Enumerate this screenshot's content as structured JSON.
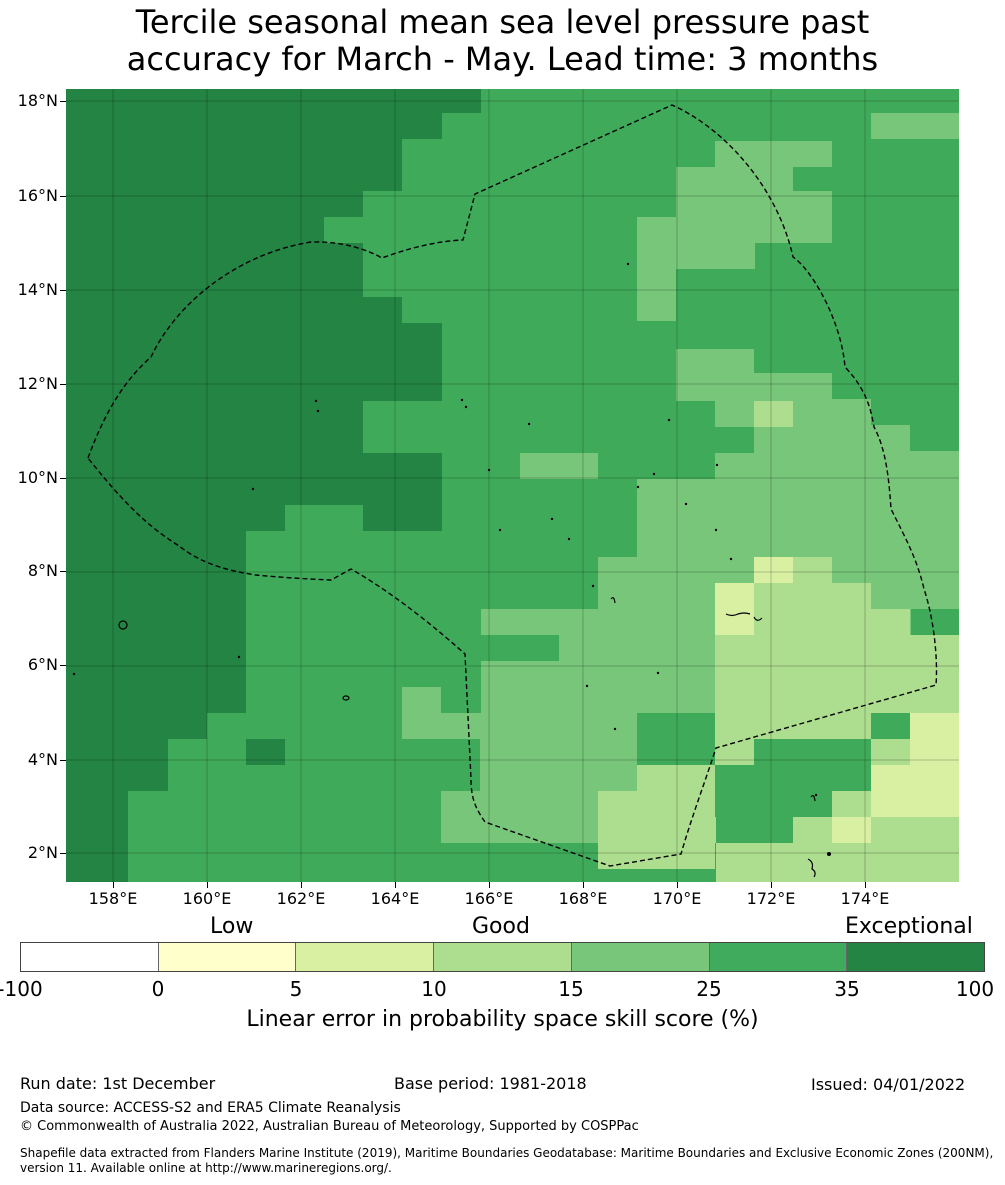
{
  "title": {
    "line1": "Tercile seasonal mean sea level pressure past",
    "line2": "accuracy for March - May. Lead time: 3 months"
  },
  "axes": {
    "lat_labels": [
      "18°N",
      "16°N",
      "14°N",
      "12°N",
      "10°N",
      "8°N",
      "6°N",
      "4°N",
      "2°N"
    ],
    "lon_labels": [
      "158°E",
      "160°E",
      "162°E",
      "164°E",
      "166°E",
      "168°E",
      "170°E",
      "172°E",
      "174°E"
    ]
  },
  "categories": {
    "low": "Low",
    "good": "Good",
    "exceptional": "Exceptional"
  },
  "colorbar": {
    "colors": [
      "#ffffff",
      "#ffffcc",
      "#d9f0a3",
      "#addd8e",
      "#78c679",
      "#41ab5d",
      "#238443"
    ],
    "labels": [
      "-100",
      "0",
      "5",
      "10",
      "15",
      "25",
      "35",
      "100"
    ],
    "title": "Linear error in probability space skill score (%)"
  },
  "footer": {
    "run_date": "Run date: 1st December",
    "base_period": "Base period: 1981-2018",
    "issued": "Issued: 04/01/2022",
    "data_source": "Data source: ACCESS-S2 and ERA5 Climate Reanalysis",
    "copyright": "© Commonwealth of Australia 2022, Australian Bureau of Meteorology, Supported by COSPPac",
    "shapefile_line1": "Shapefile data extracted from Flanders Marine Institute (2019), Maritime Boundaries Geodatabase: Maritime Boundaries and Exclusive Economic Zones (200NM),",
    "shapefile_line2": "version 11. Available online at http://www.marineregions.org/."
  }
}
